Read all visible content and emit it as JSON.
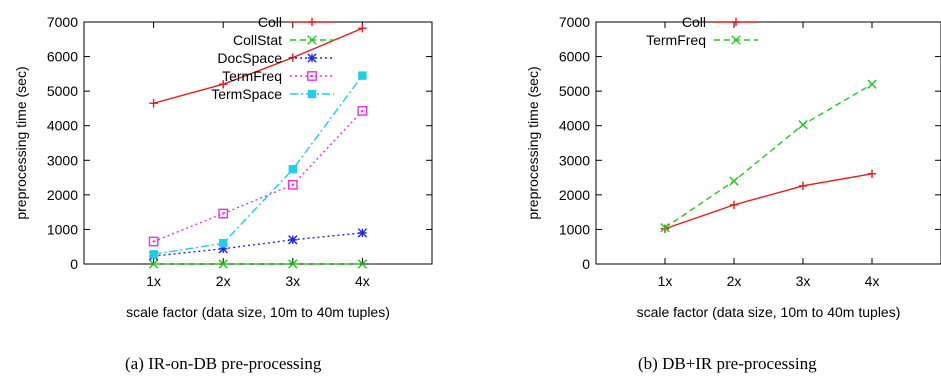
{
  "chart_data": [
    {
      "type": "line",
      "caption": "(a) IR-on-DB pre-processing",
      "xlabel": "scale factor (data size, 10m to 40m tuples)",
      "ylabel": "preprocessing time (sec)",
      "categories": [
        "1x",
        "2x",
        "3x",
        "4x"
      ],
      "xlim": [
        0,
        5
      ],
      "ylim": [
        0,
        7000
      ],
      "yticks": [
        "0",
        "1000",
        "2000",
        "3000",
        "4000",
        "5000",
        "6000",
        "7000"
      ],
      "legend_position": "top-right",
      "grid": false,
      "series": [
        {
          "name": "Coll",
          "color": "#e41a1c",
          "marker": "plus",
          "dash": "solid",
          "values": [
            4650,
            5200,
            5970,
            6820
          ]
        },
        {
          "name": "CollStat",
          "color": "#22c81e",
          "marker": "x",
          "dash": "dashed",
          "values": [
            0,
            0,
            0,
            0
          ]
        },
        {
          "name": "DocSpace",
          "color": "#1e28d2",
          "marker": "star",
          "dash": "dotted",
          "values": [
            230,
            440,
            700,
            900
          ]
        },
        {
          "name": "TermFreq",
          "color": "#e633e6",
          "marker": "open-square",
          "dash": "dotted",
          "values": [
            650,
            1460,
            2290,
            4430
          ]
        },
        {
          "name": "TermSpace",
          "color": "#1ecde6",
          "marker": "filled-square",
          "dash": "dashdot",
          "values": [
            280,
            600,
            2740,
            5450
          ]
        }
      ]
    },
    {
      "type": "line",
      "caption": "(b) DB+IR pre-processing",
      "xlabel": "scale factor (data size, 10m to 40m tuples)",
      "ylabel": "preprocessing time (sec)",
      "categories": [
        "1x",
        "2x",
        "3x",
        "4x"
      ],
      "xlim": [
        0,
        5
      ],
      "ylim": [
        0,
        7000
      ],
      "yticks": [
        "0",
        "1000",
        "2000",
        "3000",
        "4000",
        "5000",
        "6000",
        "7000"
      ],
      "legend_position": "top-left",
      "grid": false,
      "series": [
        {
          "name": "Coll",
          "color": "#e41a1c",
          "marker": "plus",
          "dash": "solid",
          "values": [
            1020,
            1710,
            2260,
            2610
          ]
        },
        {
          "name": "TermFreq",
          "color": "#22c81e",
          "marker": "x",
          "dash": "dashed",
          "values": [
            1050,
            2400,
            4030,
            5200
          ]
        }
      ]
    }
  ]
}
